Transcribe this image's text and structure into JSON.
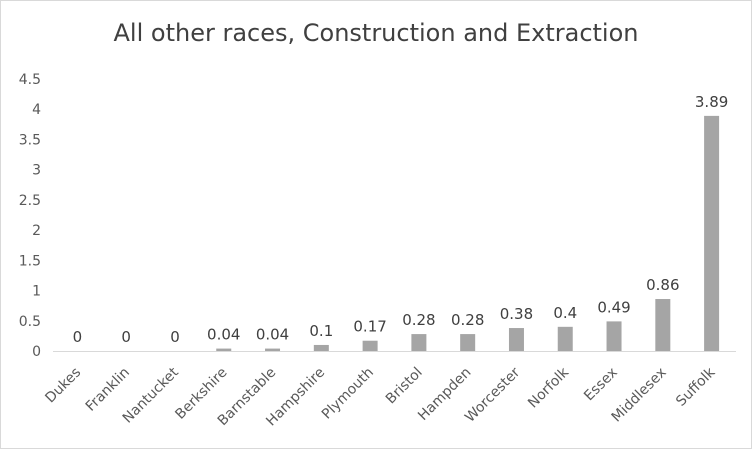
{
  "chart_data": {
    "type": "bar",
    "title": "All other races, Construction and Extraction",
    "categories": [
      "Dukes",
      "Franklin",
      "Nantucket",
      "Berkshire",
      "Barnstable",
      "Hampshire",
      "Plymouth",
      "Bristol",
      "Hampden",
      "Worcester",
      "Norfolk",
      "Essex",
      "Middlesex",
      "Suffolk"
    ],
    "values": [
      0,
      0,
      0,
      0.04,
      0.04,
      0.1,
      0.17,
      0.28,
      0.28,
      0.38,
      0.4,
      0.49,
      0.86,
      3.89
    ],
    "data_labels": [
      "0",
      "0",
      "0",
      "0.04",
      "0.04",
      "0.1",
      "0.17",
      "0.28",
      "0.28",
      "0.38",
      "0.4",
      "0.49",
      "0.86",
      "3.89"
    ],
    "yticks": [
      "0",
      "0.5",
      "1",
      "1.5",
      "2",
      "2.5",
      "3",
      "3.5",
      "4",
      "4.5"
    ],
    "ylim": [
      0,
      4.5
    ],
    "grid": false,
    "legend": "none",
    "bar_color": "#a5a5a5"
  }
}
